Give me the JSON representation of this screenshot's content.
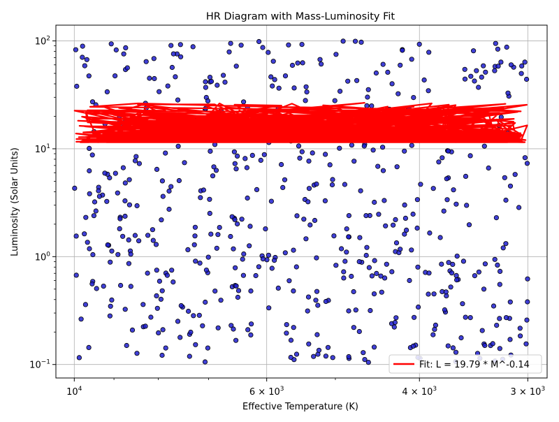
{
  "chart_data": {
    "type": "scatter",
    "title": "HR Diagram with Mass-Luminosity Fit",
    "xlabel": "Effective Temperature (K)",
    "ylabel": "Luminosity (Solar Units)",
    "xscale": "log",
    "yscale": "log",
    "x_inverted": true,
    "xlim": [
      10500,
      2850
    ],
    "ylim": [
      0.075,
      140
    ],
    "grid": true,
    "legend_position": "lower-right",
    "x_ticks": [
      {
        "value": 10000,
        "base": "10",
        "exp": "4"
      },
      {
        "value": 6000,
        "base": "6 × 10",
        "exp": "3"
      },
      {
        "value": 4000,
        "base": "4 × 10",
        "exp": "3"
      },
      {
        "value": 3000,
        "base": "3 × 10",
        "exp": "3"
      }
    ],
    "x_minor_ticks": [
      9000,
      8000,
      7000,
      5000
    ],
    "y_ticks": [
      {
        "value": 0.1,
        "base": "10",
        "exp": "−1"
      },
      {
        "value": 1,
        "base": "10",
        "exp": "0"
      },
      {
        "value": 10,
        "base": "10",
        "exp": "1"
      },
      {
        "value": 100,
        "base": "10",
        "exp": "2"
      }
    ],
    "y_minor_ticks": [
      0.2,
      0.3,
      0.4,
      0.5,
      0.6,
      0.7,
      0.8,
      0.9,
      2,
      3,
      4,
      5,
      6,
      7,
      8,
      9,
      20,
      30,
      40,
      50,
      60,
      70,
      80,
      90
    ],
    "series": [
      {
        "kind": "scatter",
        "color": "#1f1fd0",
        "edge_color": "#000000",
        "x_range": [
          10000,
          3000
        ],
        "y_range": [
          0.1,
          100
        ],
        "point_count": 600,
        "distribution": "log-uniform"
      },
      {
        "kind": "fit_line",
        "name": "Fit: L = 19.79 * M^-0.14",
        "color": "#ff0000",
        "equation": "L = 19.79 * M^-0.14",
        "coefficient": 19.79,
        "exponent": -0.14,
        "luminosity_range": [
          11.5,
          27
        ],
        "temperature_range": [
          10000,
          3000
        ],
        "segment_count": 600
      }
    ]
  }
}
